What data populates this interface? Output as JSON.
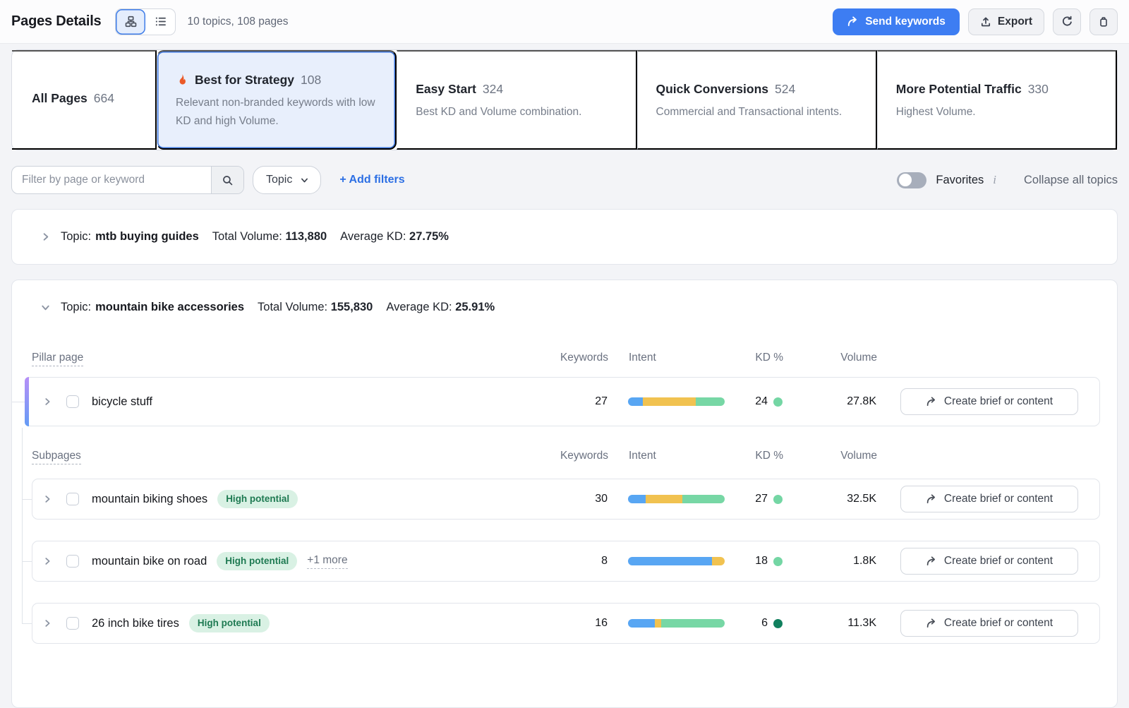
{
  "header": {
    "title": "Pages Details",
    "summary": "10 topics, 108 pages",
    "send_keywords": "Send keywords",
    "export": "Export"
  },
  "tabs": [
    {
      "label": "All Pages",
      "count": "664",
      "description": "",
      "selected": false
    },
    {
      "label": "Best for Strategy",
      "count": "108",
      "description": "Relevant non-branded keywords with low KD and high Volume.",
      "selected": true,
      "icon": "flame-icon"
    },
    {
      "label": "Easy Start",
      "count": "324",
      "description": "Best KD and Volume combination.",
      "selected": false
    },
    {
      "label": "Quick Conversions",
      "count": "524",
      "description": "Commercial and Transactional intents.",
      "selected": false
    },
    {
      "label": "More Potential Traffic",
      "count": "330",
      "description": "Highest Volume.",
      "selected": false
    }
  ],
  "filter_bar": {
    "search_placeholder": "Filter by page or keyword",
    "topic_dropdown": "Topic",
    "add_filters": "+ Add filters",
    "favorites": "Favorites",
    "favorites_on": false,
    "info": "i",
    "collapse_all": "Collapse all topics"
  },
  "strings": {
    "topic_prefix": "Topic:",
    "total_volume": "Total Volume:",
    "average_kd": "Average KD:",
    "pillar_page": "Pillar page",
    "subpages": "Subpages",
    "create_brief": "Create brief or content"
  },
  "columns": {
    "keywords": "Keywords",
    "intent": "Intent",
    "kd": "KD %",
    "volume": "Volume"
  },
  "topics": [
    {
      "name": "mtb buying guides",
      "total_volume": "113,880",
      "average_kd": "27.75%",
      "expanded": false
    },
    {
      "name": "mountain bike accessories",
      "total_volume": "155,830",
      "average_kd": "25.91%",
      "expanded": true
    }
  ],
  "pillar_row": {
    "name": "bicycle stuff",
    "keywords": "27",
    "kd": "24",
    "kd_dot": "#74d6a4",
    "volume": "27.8K",
    "intent": [
      {
        "color": "#58a6f3",
        "pct": 15
      },
      {
        "color": "#f1c250",
        "pct": 55
      },
      {
        "color": "#77d7a5",
        "pct": 30
      }
    ]
  },
  "subpage_rows": [
    {
      "name": "mountain biking shoes",
      "badge": "High potential",
      "keywords": "30",
      "kd": "27",
      "kd_dot": "#74d6a4",
      "volume": "32.5K",
      "intent": [
        {
          "color": "#58a6f3",
          "pct": 18
        },
        {
          "color": "#f1c250",
          "pct": 38
        },
        {
          "color": "#77d7a5",
          "pct": 44
        }
      ]
    },
    {
      "name": "mountain bike on road",
      "badge": "High potential",
      "more": "+1 more",
      "keywords": "8",
      "kd": "18",
      "kd_dot": "#74d6a4",
      "volume": "1.8K",
      "intent": [
        {
          "color": "#58a6f3",
          "pct": 87
        },
        {
          "color": "#f1c250",
          "pct": 13
        }
      ]
    },
    {
      "name": "26 inch bike tires",
      "badge": "High potential",
      "keywords": "16",
      "kd": "6",
      "kd_dot": "#11805e",
      "volume": "11.3K",
      "intent": [
        {
          "color": "#58a6f3",
          "pct": 28
        },
        {
          "color": "#f1c250",
          "pct": 6
        },
        {
          "color": "#77d7a5",
          "pct": 66
        }
      ]
    }
  ],
  "colors": {
    "accent_blue": "#3d7df2",
    "selected_tab_bg": "#e8effc",
    "selected_tab_border": "#3a74dd",
    "flame_orange": "#eb5a28",
    "badge_bg": "#d9f1e4",
    "badge_text": "#1e7a52",
    "intent_blue": "#58a6f3",
    "intent_yellow": "#f1c250",
    "intent_green": "#77d7a5",
    "kd_green": "#74d6a4",
    "kd_dark_green": "#11805e",
    "pillar_accent_top": "#b78ff7",
    "pillar_accent_bottom": "#649bf5"
  }
}
